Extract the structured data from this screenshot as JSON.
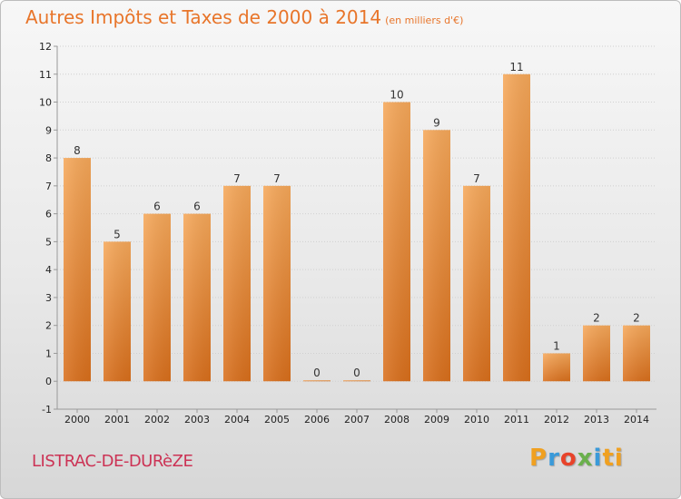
{
  "chart_data": {
    "type": "bar",
    "title": "Autres Impôts et Taxes de 2000 à 2014",
    "unit_label": "(en milliers d'€)",
    "categories": [
      "2000",
      "2001",
      "2002",
      "2003",
      "2004",
      "2005",
      "2006",
      "2007",
      "2008",
      "2009",
      "2010",
      "2011",
      "2012",
      "2013",
      "2014"
    ],
    "values": [
      8,
      5,
      6,
      6,
      7,
      7,
      0,
      0,
      10,
      9,
      7,
      11,
      1,
      2,
      2
    ],
    "ylim": [
      -1,
      12
    ],
    "yticks": [
      -1,
      0,
      1,
      2,
      3,
      4,
      5,
      6,
      7,
      8,
      9,
      10,
      11,
      12
    ],
    "bar_color_top": "#f6a85a",
    "bar_color_bottom": "#d96f1c"
  },
  "commune": "LISTRAC-DE-DURèZE",
  "logo": "Proxiti"
}
